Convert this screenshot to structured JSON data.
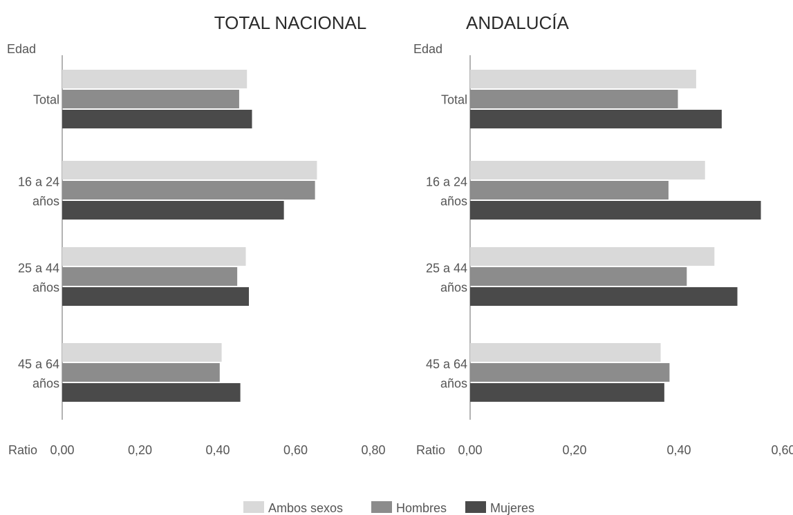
{
  "chart_data": [
    {
      "type": "bar",
      "orientation": "horizontal",
      "title": "TOTAL NACIONAL",
      "ylabel": "Edad",
      "xlabel": "Ratio",
      "categories": [
        [
          "Total"
        ],
        [
          "16 a 24",
          "años"
        ],
        [
          "25 a 44",
          "años"
        ],
        [
          "45 a 64",
          "años"
        ]
      ],
      "series": [
        {
          "name": "Ambos sexos",
          "values": [
            0.475,
            0.655,
            0.472,
            0.41
          ]
        },
        {
          "name": "Hombres",
          "values": [
            0.455,
            0.65,
            0.45,
            0.405
          ]
        },
        {
          "name": "Mujeres",
          "values": [
            0.488,
            0.57,
            0.48,
            0.458
          ]
        }
      ],
      "xlim": [
        0,
        0.8
      ],
      "xticks": [
        "0,00",
        "0,20",
        "0,40",
        "0,60",
        "0,80"
      ]
    },
    {
      "type": "bar",
      "orientation": "horizontal",
      "title": "ANDALUCÍA",
      "ylabel": "Edad",
      "xlabel": "Ratio",
      "categories": [
        [
          "Total"
        ],
        [
          "16 a 24",
          "años"
        ],
        [
          "25 a 44",
          "años"
        ],
        [
          "45 a 64",
          "años"
        ]
      ],
      "series": [
        {
          "name": "Ambos sexos",
          "values": [
            0.433,
            0.45,
            0.468,
            0.365
          ]
        },
        {
          "name": "Hombres",
          "values": [
            0.398,
            0.38,
            0.415,
            0.382
          ]
        },
        {
          "name": "Mujeres",
          "values": [
            0.482,
            0.557,
            0.512,
            0.372
          ]
        }
      ],
      "xlim": [
        0,
        0.6
      ],
      "xticks": [
        "0,00",
        "0,20",
        "0,40",
        "0,60"
      ]
    }
  ],
  "legend": {
    "position": "bottom",
    "items": [
      {
        "name": "Ambos sexos",
        "color": "#d9d9d9"
      },
      {
        "name": "Hombres",
        "color": "#8c8c8c"
      },
      {
        "name": "Mujeres",
        "color": "#4a4a4a"
      }
    ]
  },
  "colors": [
    "#d9d9d9",
    "#8c8c8c",
    "#4a4a4a"
  ]
}
